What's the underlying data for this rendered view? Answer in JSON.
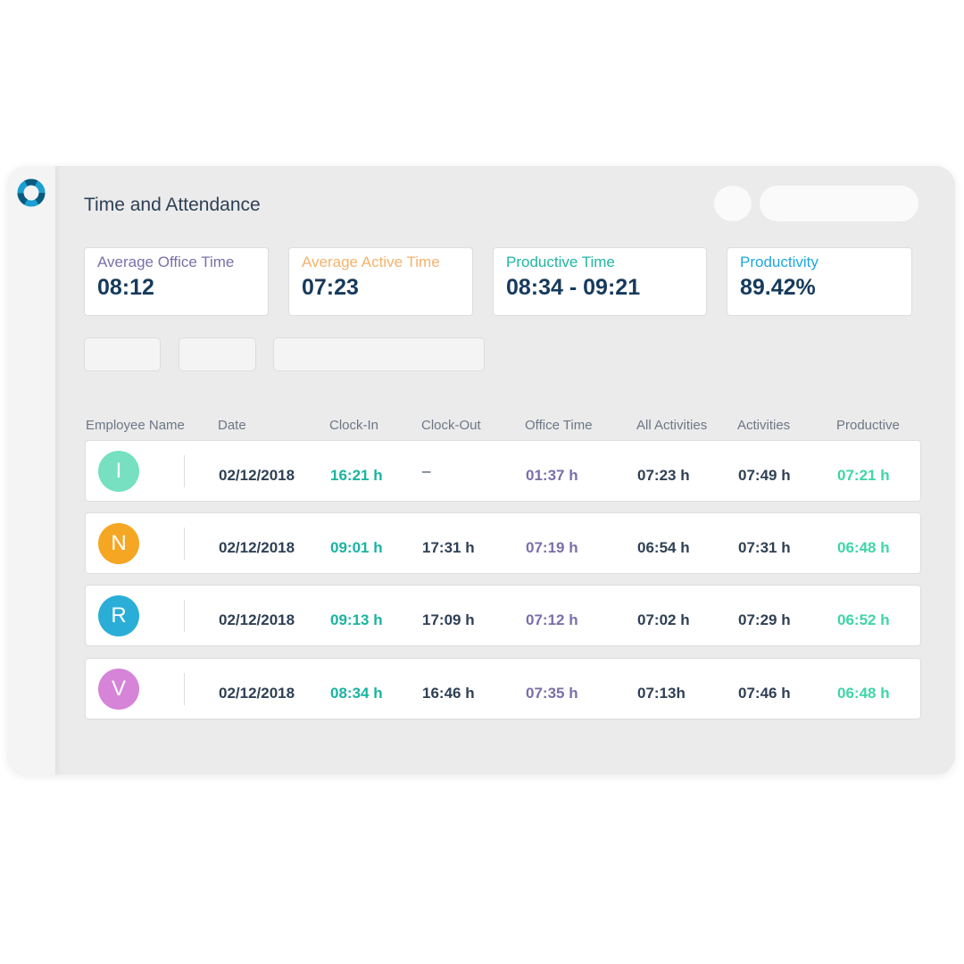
{
  "header": {
    "title": "Time and Attendance"
  },
  "stats": [
    {
      "label": "Average Office Time",
      "value": "08:12",
      "color": "#7b6fa8"
    },
    {
      "label": "Average Active Time",
      "value": "07:23",
      "color": "#f5b26b"
    },
    {
      "label": "Productive Time",
      "value": "08:34 - 09:21",
      "color": "#1fb5a0"
    },
    {
      "label": "Productivity",
      "value": "89.42%",
      "color": "#1fa7e0"
    }
  ],
  "table": {
    "columns": [
      "Employee Name",
      "Date",
      "Clock-In",
      "Clock-Out",
      "Office Time",
      "All Activities",
      "Activities",
      "Productive"
    ],
    "rows": [
      {
        "initial": "I",
        "avatar_color": "#76e0c0",
        "date": "02/12/2018",
        "clock_in": "16:21 h",
        "clock_out": "–",
        "office": "01:37 h",
        "all": "07:23 h",
        "activities": "07:49 h",
        "productive": "07:21 h"
      },
      {
        "initial": "N",
        "avatar_color": "#f5a623",
        "date": "02/12/2018",
        "clock_in": "09:01 h",
        "clock_out": "17:31 h",
        "office": "07:19 h",
        "all": "06:54 h",
        "activities": "07:31 h",
        "productive": "06:48 h"
      },
      {
        "initial": "R",
        "avatar_color": "#2aaed8",
        "date": "02/12/2018",
        "clock_in": "09:13 h",
        "clock_out": "17:09 h",
        "office": "07:12 h",
        "all": "07:02 h",
        "activities": "07:29 h",
        "productive": "06:52 h"
      },
      {
        "initial": "V",
        "avatar_color": "#d584d8",
        "date": "02/12/2018",
        "clock_in": "08:34 h",
        "clock_out": "16:46 h",
        "office": "07:35 h",
        "all": "07:13h",
        "activities": "07:46 h",
        "productive": "06:48 h"
      }
    ]
  },
  "colors": {
    "clock_in": "#1ab3a0",
    "office": "#7b6fa8",
    "productive": "#3ed6a6"
  }
}
